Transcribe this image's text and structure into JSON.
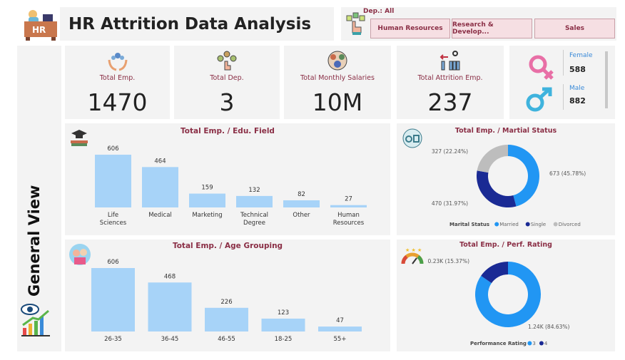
{
  "header": {
    "title": "HR Attrition Data Analysis",
    "logo_text": "HR"
  },
  "filter": {
    "label": "Dep.: All",
    "options": [
      "Human Resources",
      "Research & Develop...",
      "Sales"
    ]
  },
  "sidebar": {
    "label": "General View"
  },
  "kpis": [
    {
      "label": "Total Emp.",
      "value": "1470",
      "icon": "employees-hands-icon"
    },
    {
      "label": "Total Dep.",
      "value": "3",
      "icon": "departments-icon"
    },
    {
      "label": "Total Monthly Salaries",
      "value": "10M",
      "icon": "salaries-icon"
    },
    {
      "label": "Total Attrition Emp.",
      "value": "237",
      "icon": "attrition-icon"
    }
  ],
  "gender": {
    "female_label": "Female",
    "female_value": "588",
    "male_label": "Male",
    "male_value": "882",
    "female_color": "#e86fa6",
    "male_color": "#3fb3dd"
  },
  "colors": {
    "bar": "#a7d3f8",
    "married": "#2196f3",
    "single": "#1a2a94",
    "divorced": "#bdbdbd",
    "title": "#8a2e45"
  },
  "chart_data": [
    {
      "type": "bar",
      "title": "Total Emp. / Edu. Field",
      "categories": [
        "Life Sciences",
        "Medical",
        "Marketing",
        "Technical Degree",
        "Other",
        "Human Resources"
      ],
      "values": [
        606,
        464,
        159,
        132,
        82,
        27
      ]
    },
    {
      "type": "bar",
      "title": "Total Emp. / Age Grouping",
      "categories": [
        "26-35",
        "36-45",
        "46-55",
        "18-25",
        "55+"
      ],
      "values": [
        606,
        468,
        226,
        123,
        47
      ]
    },
    {
      "type": "pie",
      "title": "Total Emp. / Martial Status",
      "legend_title": "Marital Status",
      "legend_position": "bottom",
      "categories": [
        "Married",
        "Single",
        "Divorced"
      ],
      "values": [
        673,
        470,
        327
      ],
      "labels": [
        "673 (45.78%)",
        "470 (31.97%)",
        "327 (22.24%)"
      ]
    },
    {
      "type": "pie",
      "title": "Total Emp. / Perf. Rating",
      "legend_title": "Performance Rating",
      "legend_position": "bottom",
      "categories": [
        "3",
        "4"
      ],
      "values": [
        1244,
        226
      ],
      "labels": [
        "1.24K (84.63%)",
        "0.23K (15.37%)"
      ]
    }
  ]
}
